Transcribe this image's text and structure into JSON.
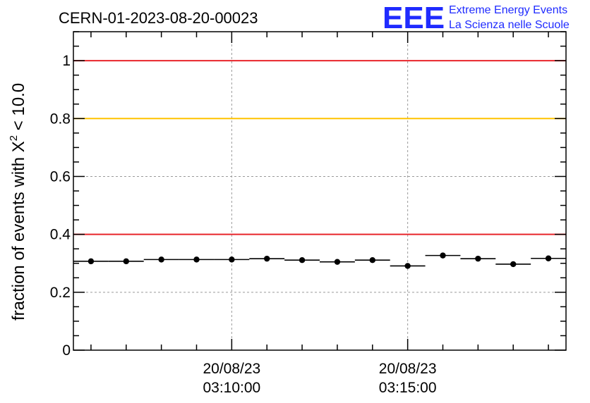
{
  "header": {
    "title": "CERN-01-2023-08-20-00023",
    "logo_mark": "EEE",
    "logo_line1": "Extreme Energy Events",
    "logo_line2": "La Scienza nelle Scuole",
    "logo_color": "#1f2bff"
  },
  "chart_data": {
    "type": "scatter",
    "ylabel_main": "fraction of events with X",
    "ylabel_sup": "2",
    "ylabel_tail": " < 10.0",
    "ylim": [
      0,
      1.1
    ],
    "xlim_minutes": [
      5.5,
      19.5
    ],
    "yticks": [
      {
        "v": 0,
        "label": "0"
      },
      {
        "v": 0.2,
        "label": "0.2"
      },
      {
        "v": 0.4,
        "label": "0.4"
      },
      {
        "v": 0.6,
        "label": "0.6"
      },
      {
        "v": 0.8,
        "label": "0.8"
      },
      {
        "v": 1,
        "label": "1"
      }
    ],
    "xticks": [
      {
        "minute": 10,
        "date": "20/08/23",
        "time": "03:10:00"
      },
      {
        "minute": 15,
        "date": "20/08/23",
        "time": "03:15:00"
      }
    ],
    "grid": true,
    "reference_lines": [
      {
        "y": 1.0,
        "color": "#e8252b"
      },
      {
        "y": 0.8,
        "color": "#ffc300"
      },
      {
        "y": 0.4,
        "color": "#e8252b"
      }
    ],
    "series": [
      {
        "bin_width_minutes": 1,
        "points": [
          {
            "minute": 6,
            "y": 0.307
          },
          {
            "minute": 7,
            "y": 0.307
          },
          {
            "minute": 8,
            "y": 0.313
          },
          {
            "minute": 9,
            "y": 0.313
          },
          {
            "minute": 10,
            "y": 0.313
          },
          {
            "minute": 11,
            "y": 0.316
          },
          {
            "minute": 12,
            "y": 0.311
          },
          {
            "minute": 13,
            "y": 0.305
          },
          {
            "minute": 14,
            "y": 0.311
          },
          {
            "minute": 15,
            "y": 0.291
          },
          {
            "minute": 16,
            "y": 0.327
          },
          {
            "minute": 17,
            "y": 0.316
          },
          {
            "minute": 18,
            "y": 0.297
          },
          {
            "minute": 19,
            "y": 0.317
          }
        ]
      }
    ]
  }
}
